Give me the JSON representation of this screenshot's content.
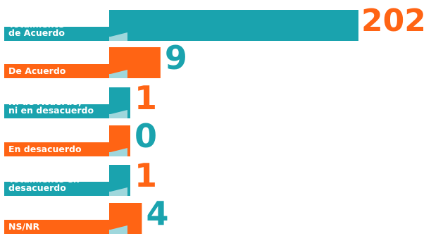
{
  "chart_data": {
    "type": "bar",
    "orientation": "horizontal",
    "categories": [
      "Totalmente\nde Acuerdo",
      "De Acuerdo",
      "Ni de Acuerdo,\nni en desacuerdo",
      "En desacuerdo",
      "Totalmente en\ndesacuerdo",
      "NS/NR"
    ],
    "values": [
      202,
      9,
      1,
      0,
      1,
      4
    ],
    "value_labels": [
      "202",
      "9",
      "1",
      "0",
      "1",
      "4"
    ],
    "bar_colors": [
      "#1aa3ae",
      "#ff6414",
      "#1aa3ae",
      "#ff6414",
      "#1aa3ae",
      "#ff6414"
    ],
    "label_colors": [
      "#ff6414",
      "#1aa3ae",
      "#ff6414",
      "#1aa3ae",
      "#ff6414",
      "#1aa3ae"
    ],
    "accent_color": "#9fd7dc",
    "grid": false,
    "legend": "none"
  }
}
